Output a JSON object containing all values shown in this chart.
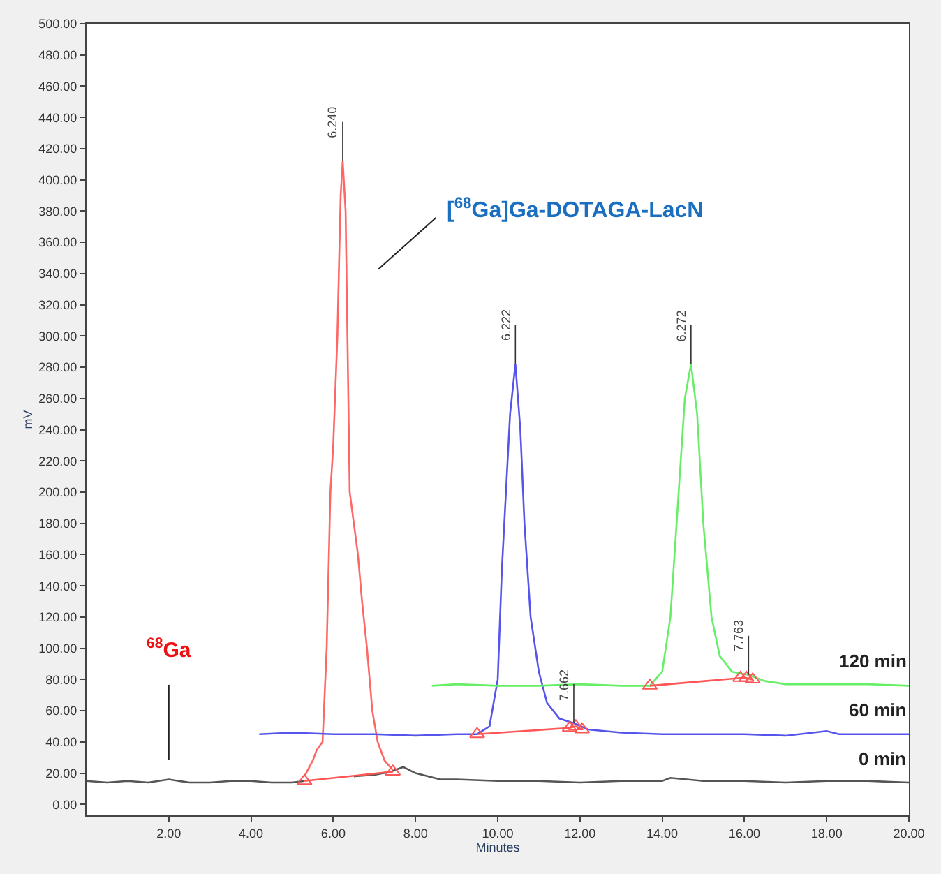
{
  "chart_data": {
    "type": "line",
    "xlabel": "Minutes",
    "ylabel": "mV",
    "xlim": [
      0,
      20
    ],
    "ylim": [
      -7,
      500
    ],
    "xticks": [
      {
        "value": 2,
        "label": "2.00"
      },
      {
        "value": 4,
        "label": "4.00"
      },
      {
        "value": 6,
        "label": "6.00"
      },
      {
        "value": 8,
        "label": "8.00"
      },
      {
        "value": 10,
        "label": "10.00"
      },
      {
        "value": 12,
        "label": "12.00"
      },
      {
        "value": 14,
        "label": "14.00"
      },
      {
        "value": 16,
        "label": "16.00"
      },
      {
        "value": 18,
        "label": "18.00"
      },
      {
        "value": 20,
        "label": "20.00"
      }
    ],
    "yticks": [
      {
        "value": 0,
        "label": "0.00"
      },
      {
        "value": 20,
        "label": "20.00"
      },
      {
        "value": 40,
        "label": "40.00"
      },
      {
        "value": 60,
        "label": "60.00"
      },
      {
        "value": 80,
        "label": "80.00"
      },
      {
        "value": 100,
        "label": "100.00"
      },
      {
        "value": 120,
        "label": "120.00"
      },
      {
        "value": 140,
        "label": "140.00"
      },
      {
        "value": 160,
        "label": "160.00"
      },
      {
        "value": 180,
        "label": "180.00"
      },
      {
        "value": 200,
        "label": "200.00"
      },
      {
        "value": 220,
        "label": "220.00"
      },
      {
        "value": 240,
        "label": "240.00"
      },
      {
        "value": 260,
        "label": "260.00"
      },
      {
        "value": 280,
        "label": "280.00"
      },
      {
        "value": 300,
        "label": "300.00"
      },
      {
        "value": 320,
        "label": "320.00"
      },
      {
        "value": 340,
        "label": "340.00"
      },
      {
        "value": 360,
        "label": "360.00"
      },
      {
        "value": 380,
        "label": "380.00"
      },
      {
        "value": 400,
        "label": "400.00"
      },
      {
        "value": 420,
        "label": "420.00"
      },
      {
        "value": 440,
        "label": "440.00"
      },
      {
        "value": 460,
        "label": "460.00"
      },
      {
        "value": 480,
        "label": "480.00"
      },
      {
        "value": 500,
        "label": "500.00"
      }
    ],
    "legend": false,
    "line_style": "solid",
    "series": [
      {
        "name": "0 min",
        "color": "#555555",
        "x": [
          0,
          0.5,
          1,
          1.5,
          2,
          2.5,
          3,
          3.5,
          4,
          4.5,
          5,
          5.3,
          5.6,
          6,
          6.5,
          7,
          7.4,
          7.7,
          8,
          8.3,
          8.6,
          9,
          10,
          11,
          12,
          13,
          14,
          14.2,
          15,
          16,
          17,
          18,
          19,
          20
        ],
        "values": [
          15,
          14,
          15,
          14,
          16,
          14,
          14,
          15,
          15,
          14,
          14,
          15,
          null,
          null,
          18,
          19,
          21,
          24,
          20,
          18,
          16,
          16,
          15,
          15,
          14,
          15,
          15,
          17,
          15,
          15,
          14,
          15,
          15,
          14
        ]
      },
      {
        "color": "#ff6666",
        "x": [
          5.3,
          5.5,
          5.6,
          5.74,
          5.84,
          5.93,
          6.0,
          6.1,
          6.18,
          6.23,
          6.3,
          6.4,
          6.5,
          6.6,
          6.7,
          6.82,
          6.95,
          7.08,
          7.25,
          7.45
        ],
        "values": [
          18,
          28,
          35,
          40,
          100,
          200,
          230,
          300,
          390,
          412,
          380,
          200,
          180,
          160,
          130,
          100,
          60,
          40,
          28,
          22
        ]
      },
      {
        "name": "60 min",
        "color": "#5555ee",
        "x": [
          4.2,
          5,
          6,
          7,
          8,
          9,
          9.5,
          9.8,
          10.0,
          10.1,
          10.2,
          10.3,
          10.43,
          10.55,
          10.65,
          10.8,
          11.0,
          11.2,
          11.5,
          11.85,
          12.2,
          13,
          14,
          15,
          16,
          17,
          18,
          18.3,
          19,
          20
        ],
        "values": [
          45,
          46,
          45,
          45,
          44,
          45,
          45,
          50,
          80,
          150,
          200,
          250,
          282,
          240,
          180,
          120,
          85,
          65,
          55,
          52,
          48,
          46,
          45,
          45,
          45,
          44,
          47,
          45,
          45,
          45
        ]
      },
      {
        "name": "120 min",
        "color": "#66ee66",
        "x": [
          8.4,
          9,
          10,
          11,
          12,
          13,
          13.7,
          14.0,
          14.2,
          14.4,
          14.55,
          14.7,
          14.85,
          15.0,
          15.2,
          15.4,
          15.7,
          16.1,
          16.5,
          17,
          18,
          19,
          20
        ],
        "values": [
          76,
          77,
          76,
          76,
          77,
          76,
          76,
          85,
          120,
          200,
          260,
          282,
          250,
          180,
          120,
          95,
          85,
          83,
          79,
          77,
          77,
          77,
          76
        ]
      },
      {
        "color": "#ff5555",
        "marker": "triangle",
        "x": [
          5.3,
          7.45
        ],
        "values": [
          15,
          21
        ]
      },
      {
        "color": "#ff5555",
        "marker": "triangle",
        "x": [
          9.5,
          11.75,
          11.9,
          12.05
        ],
        "values": [
          45,
          49,
          50,
          48
        ]
      },
      {
        "color": "#ff5555",
        "marker": "triangle",
        "x": [
          13.7,
          15.9,
          16.05,
          16.2
        ],
        "values": [
          76,
          81,
          81,
          80
        ]
      }
    ],
    "annotations": [
      {
        "text": "6.240",
        "x": 6.23,
        "y": 412
      },
      {
        "text": "6.222",
        "x": 10.43,
        "y": 282
      },
      {
        "text": "6.272",
        "x": 14.7,
        "y": 282
      },
      {
        "text": "7.662",
        "x": 11.85,
        "y": 52
      },
      {
        "text": "7.763",
        "x": 16.1,
        "y": 83
      },
      "[$^{68}$Ga]Ga-DOTAGA-LacN",
      "$^{68}$Ga"
    ]
  }
}
